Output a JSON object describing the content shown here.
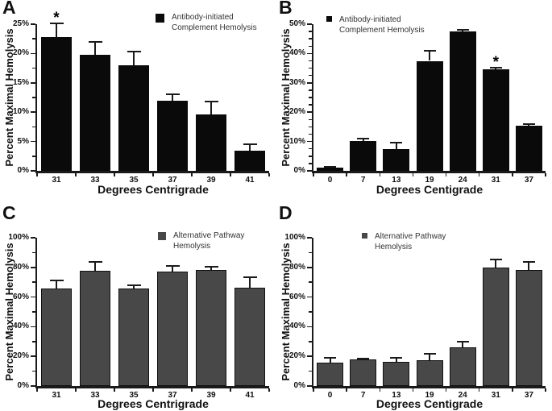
{
  "figure": {
    "description": "Four-panel bar chart figure of percent maximal hemolysis versus temperature",
    "background": "#ffffff",
    "axis_color": "#1a1a1a"
  },
  "chart_data": [
    {
      "panel": "A",
      "type": "bar",
      "series_name": "Antibody-initiated Complement Hemolysis",
      "categories": [
        "31",
        "33",
        "35",
        "37",
        "39",
        "41"
      ],
      "values": [
        22.8,
        19.8,
        18.0,
        11.9,
        9.6,
        3.4
      ],
      "errors": [
        2.3,
        2.2,
        2.3,
        1.1,
        2.2,
        1.2
      ],
      "asterisk_index": 0,
      "significance_marker": "*",
      "bar_color": "#0a0a0a",
      "bar_outline": "#0a0a0a",
      "ylabel": "Percent Maximal Hemolysis",
      "xlabel": "Degrees Centrigrade",
      "ylim": [
        0,
        25
      ],
      "ytick_step": 5,
      "yminor_step": 2.5,
      "ytick_labels": [
        "0%",
        "5%",
        "10%",
        "15%",
        "20%",
        "25%"
      ],
      "legend": {
        "lines": [
          "Antibody-initiated",
          "Complement Hemolysis"
        ],
        "marker_color": "#0a0a0a",
        "position": "top-right"
      }
    },
    {
      "panel": "B",
      "type": "bar",
      "series_name": "Antibody-initiated Complement Hemolysis",
      "categories": [
        "0",
        "7",
        "13",
        "19",
        "24",
        "31",
        "37"
      ],
      "values": [
        1.0,
        10.2,
        7.3,
        37.5,
        47.5,
        34.7,
        15.5
      ],
      "errors": [
        0.4,
        0.8,
        2.4,
        3.3,
        0.7,
        0.6,
        0.5
      ],
      "asterisk_index": 5,
      "significance_marker": "*",
      "bar_color": "#0a0a0a",
      "bar_outline": "#0a0a0a",
      "ylabel": "Percent Maximal Hemolysis",
      "xlabel": "Degrees Centigrade",
      "ylim": [
        0,
        50
      ],
      "ytick_step": 10,
      "yminor_step": 2.5,
      "ytick_labels": [
        "0%",
        "10%",
        "20%",
        "30%",
        "40%",
        "50%"
      ],
      "legend": {
        "lines": [
          "Antibody-initiated",
          "Complement Hemolysis"
        ],
        "marker_color": "#0a0a0a",
        "position": "top-left"
      }
    },
    {
      "panel": "C",
      "type": "bar",
      "series_name": "Alternative Pathway Hemolysis",
      "categories": [
        "31",
        "33",
        "35",
        "37",
        "39",
        "41"
      ],
      "values": [
        66.0,
        77.5,
        65.5,
        77.0,
        78.0,
        66.5
      ],
      "errors": [
        5.0,
        6.0,
        2.5,
        4.0,
        2.5,
        7.0
      ],
      "asterisk_index": null,
      "significance_marker": "",
      "bar_color": "#484848",
      "bar_outline": "#111111",
      "ylabel": "Percent Maximal Hemolysis",
      "xlabel": "Degrees Centrigrade",
      "ylim": [
        0,
        100
      ],
      "ytick_step": 20,
      "yminor_step": 10,
      "ytick_labels": [
        "0%",
        "20%",
        "40%",
        "60%",
        "80%",
        "100%"
      ],
      "legend": {
        "lines": [
          "Alternative Pathway",
          "Hemolysis"
        ],
        "marker_color": "#484848",
        "position": "top-right"
      }
    },
    {
      "panel": "D",
      "type": "bar",
      "series_name": "Alternative Pathway Hemolysis",
      "categories": [
        "0",
        "7",
        "13",
        "19",
        "24",
        "31",
        "37"
      ],
      "values": [
        15.5,
        17.8,
        16.3,
        17.3,
        26.0,
        80.0,
        78.5
      ],
      "errors": [
        3.5,
        0.6,
        2.6,
        4.4,
        4.0,
        5.5,
        5.0
      ],
      "asterisk_index": null,
      "significance_marker": "",
      "bar_color": "#484848",
      "bar_outline": "#111111",
      "ylabel": "Percent Maximal Hemolysis",
      "xlabel": "Degrees Centigrade",
      "ylim": [
        0,
        100
      ],
      "ytick_step": 20,
      "yminor_step": 10,
      "ytick_labels": [
        "0%",
        "20%",
        "40%",
        "60%",
        "80%",
        "100%"
      ],
      "legend": {
        "lines": [
          "Alternative Pathway",
          "Hemolysis"
        ],
        "marker_color": "#484848",
        "position": "top-left"
      }
    }
  ]
}
